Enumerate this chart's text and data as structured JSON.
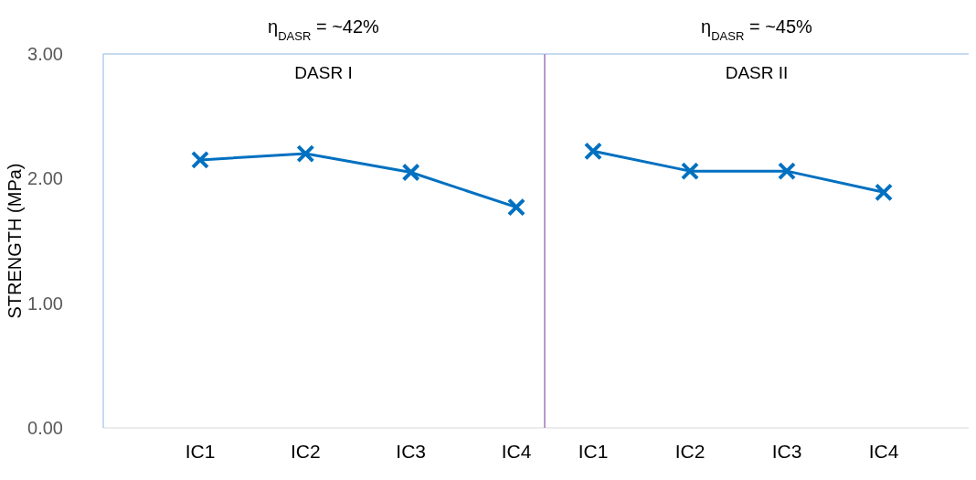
{
  "chart_data": [
    {
      "type": "line",
      "title": "η$_{DASR}$ = ~42%",
      "annotations": [
        "DASR I"
      ],
      "categories": [
        "IC1",
        "IC2",
        "IC3",
        "IC4"
      ],
      "series": [
        {
          "color": "#0070c0",
          "values": [
            2.15,
            2.2,
            2.05,
            1.77
          ]
        }
      ],
      "ylabel": "STRENGTH (MPa)",
      "ylim": [
        0,
        3
      ],
      "yticks": [
        {
          "value": 0,
          "label": "0.00"
        },
        {
          "value": 1,
          "label": "1.00"
        },
        {
          "value": 2,
          "label": "2.00"
        },
        {
          "value": 3,
          "label": "3.00"
        }
      ],
      "grid": false,
      "legend": false,
      "marker": "cross",
      "line_style": "solid"
    },
    {
      "type": "line",
      "title": "η$_{DASR}$ = ~45%",
      "annotations": [
        "DASR II"
      ],
      "categories": [
        "IC1",
        "IC2",
        "IC3",
        "IC4"
      ],
      "series": [
        {
          "color": "#0070c0",
          "values": [
            2.22,
            2.06,
            2.06,
            1.89
          ]
        }
      ],
      "ylim": [
        0,
        3
      ],
      "tick_labels": "x",
      "grid": false,
      "legend": false,
      "marker": "cross",
      "line_style": "solid"
    }
  ]
}
